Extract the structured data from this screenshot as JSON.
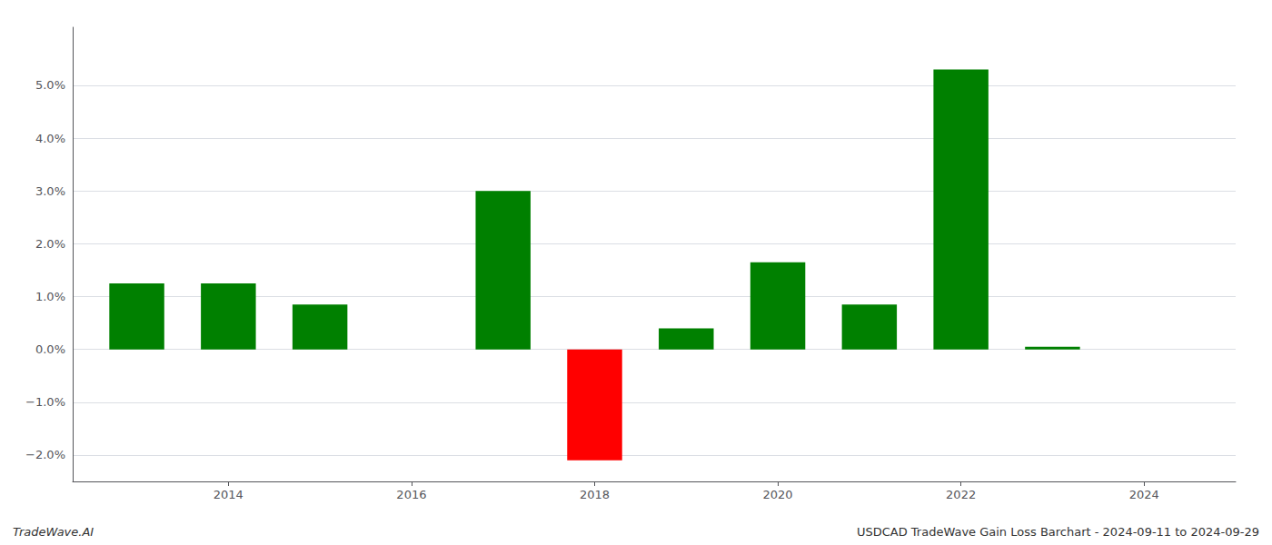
{
  "chart_data": {
    "type": "bar",
    "x": [
      2013,
      2014,
      2015,
      2017,
      2018,
      2019,
      2020,
      2021,
      2022,
      2023
    ],
    "values": [
      1.25,
      1.25,
      0.85,
      3.0,
      -2.1,
      0.4,
      1.65,
      0.85,
      5.3,
      0.05
    ],
    "colors": [
      "#008000",
      "#008000",
      "#008000",
      "#008000",
      "#ff0000",
      "#008000",
      "#008000",
      "#008000",
      "#008000",
      "#008000"
    ],
    "xlim": [
      2012.3,
      2025.0
    ],
    "xticks": [
      2014,
      2016,
      2018,
      2020,
      2022,
      2024
    ],
    "ylim": [
      -2.5,
      6.1
    ],
    "yticks": [
      {
        "value": -2.0,
        "label": "−2.0%"
      },
      {
        "value": -1.0,
        "label": "−1.0%"
      },
      {
        "value": 0.0,
        "label": "0.0%"
      },
      {
        "value": 1.0,
        "label": "1.0%"
      },
      {
        "value": 2.0,
        "label": "2.0%"
      },
      {
        "value": 3.0,
        "label": "3.0%"
      },
      {
        "value": 4.0,
        "label": "4.0%"
      },
      {
        "value": 5.0,
        "label": "5.0%"
      }
    ],
    "grid": true,
    "annotations": [
      "TradeWave.AI",
      "USDCAD TradeWave Gain Loss Barchart - 2024-09-11 to 2024-09-29"
    ]
  }
}
